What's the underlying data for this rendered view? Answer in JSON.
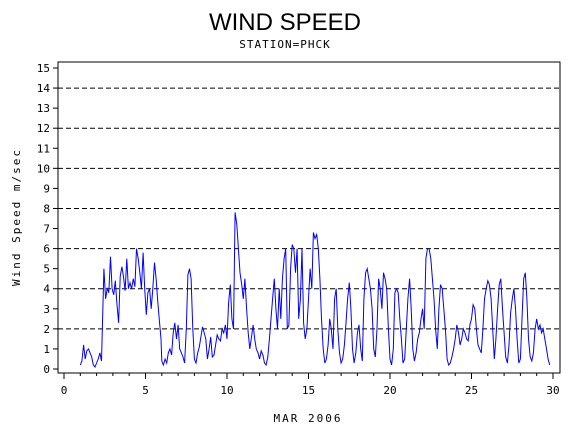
{
  "chart_data": {
    "type": "line",
    "title": "WIND SPEED",
    "subtitle": "STATION=PHCK",
    "xlabel": "MAR 2006",
    "ylabel": "Wind Speed m/sec",
    "xlim": [
      0,
      30.3
    ],
    "ylim": [
      0,
      15.5
    ],
    "x_ticks": [
      0,
      5,
      10,
      15,
      20,
      25,
      30
    ],
    "y_ticks": [
      0,
      1,
      2,
      3,
      4,
      5,
      6,
      7,
      8,
      9,
      10,
      11,
      12,
      13,
      14,
      15
    ],
    "dashed_gridlines_y": [
      2,
      4,
      6,
      8,
      10,
      12,
      14
    ],
    "line_color": "#0000ff",
    "series": [
      {
        "points": [
          [
            1.0,
            0.2
          ],
          [
            1.1,
            0.4
          ],
          [
            1.2,
            1.2
          ],
          [
            1.3,
            0.5
          ],
          [
            1.4,
            0.9
          ],
          [
            1.5,
            1.0
          ],
          [
            1.6,
            0.8
          ],
          [
            1.7,
            0.6
          ],
          [
            1.8,
            0.2
          ],
          [
            1.9,
            0.1
          ],
          [
            2.0,
            0.3
          ],
          [
            2.1,
            0.5
          ],
          [
            2.2,
            0.8
          ],
          [
            2.3,
            0.4
          ],
          [
            2.45,
            5.0
          ],
          [
            2.55,
            3.5
          ],
          [
            2.65,
            4.0
          ],
          [
            2.75,
            3.8
          ],
          [
            2.85,
            5.6
          ],
          [
            2.95,
            4.0
          ],
          [
            3.05,
            3.7
          ],
          [
            3.15,
            4.4
          ],
          [
            3.25,
            3.2
          ],
          [
            3.35,
            2.3
          ],
          [
            3.45,
            4.6
          ],
          [
            3.55,
            5.1
          ],
          [
            3.65,
            4.6
          ],
          [
            3.75,
            3.9
          ],
          [
            3.85,
            5.5
          ],
          [
            3.95,
            4.0
          ],
          [
            4.05,
            4.3
          ],
          [
            4.15,
            4.0
          ],
          [
            4.25,
            4.5
          ],
          [
            4.35,
            4.1
          ],
          [
            4.45,
            6.0
          ],
          [
            4.55,
            5.5
          ],
          [
            4.65,
            4.8
          ],
          [
            4.75,
            4.0
          ],
          [
            4.85,
            5.8
          ],
          [
            4.95,
            4.0
          ],
          [
            5.05,
            2.7
          ],
          [
            5.15,
            3.8
          ],
          [
            5.25,
            4.0
          ],
          [
            5.35,
            3.0
          ],
          [
            5.45,
            4.0
          ],
          [
            5.55,
            5.3
          ],
          [
            5.65,
            4.5
          ],
          [
            5.75,
            3.4
          ],
          [
            5.85,
            2.4
          ],
          [
            5.95,
            1.5
          ],
          [
            6.0,
            0.4
          ],
          [
            6.1,
            0.2
          ],
          [
            6.2,
            0.5
          ],
          [
            6.3,
            0.3
          ],
          [
            6.4,
            0.8
          ],
          [
            6.5,
            1.0
          ],
          [
            6.6,
            0.7
          ],
          [
            6.7,
            1.8
          ],
          [
            6.8,
            2.3
          ],
          [
            6.9,
            1.5
          ],
          [
            7.0,
            2.2
          ],
          [
            7.1,
            1.0
          ],
          [
            7.2,
            0.8
          ],
          [
            7.3,
            0.6
          ],
          [
            7.4,
            0.3
          ],
          [
            7.5,
            2.0
          ],
          [
            7.6,
            4.7
          ],
          [
            7.7,
            5.0
          ],
          [
            7.8,
            4.5
          ],
          [
            7.9,
            2.0
          ],
          [
            8.0,
            0.5
          ],
          [
            8.1,
            0.3
          ],
          [
            8.2,
            0.8
          ],
          [
            8.3,
            1.1
          ],
          [
            8.4,
            1.6
          ],
          [
            8.5,
            2.1
          ],
          [
            8.6,
            1.8
          ],
          [
            8.7,
            1.5
          ],
          [
            8.8,
            0.5
          ],
          [
            8.9,
            1.0
          ],
          [
            9.0,
            1.6
          ],
          [
            9.1,
            0.6
          ],
          [
            9.2,
            0.7
          ],
          [
            9.3,
            1.2
          ],
          [
            9.4,
            1.7
          ],
          [
            9.5,
            1.5
          ],
          [
            9.6,
            1.4
          ],
          [
            9.7,
            2.0
          ],
          [
            9.8,
            1.8
          ],
          [
            9.9,
            2.2
          ],
          [
            10.0,
            1.5
          ],
          [
            10.1,
            3.3
          ],
          [
            10.2,
            4.2
          ],
          [
            10.3,
            2.5
          ],
          [
            10.4,
            2.0
          ],
          [
            10.5,
            7.8
          ],
          [
            10.6,
            7.2
          ],
          [
            10.7,
            6.0
          ],
          [
            10.8,
            4.8
          ],
          [
            10.9,
            4.2
          ],
          [
            11.0,
            3.5
          ],
          [
            11.1,
            4.5
          ],
          [
            11.2,
            3.0
          ],
          [
            11.3,
            1.8
          ],
          [
            11.4,
            1.0
          ],
          [
            11.5,
            1.6
          ],
          [
            11.6,
            2.2
          ],
          [
            11.7,
            1.5
          ],
          [
            11.8,
            1.0
          ],
          [
            11.9,
            0.8
          ],
          [
            12.0,
            0.5
          ],
          [
            12.1,
            0.9
          ],
          [
            12.2,
            0.7
          ],
          [
            12.3,
            0.3
          ],
          [
            12.4,
            0.2
          ],
          [
            12.5,
            0.6
          ],
          [
            12.6,
            1.5
          ],
          [
            12.7,
            2.5
          ],
          [
            12.8,
            3.5
          ],
          [
            12.9,
            4.5
          ],
          [
            13.0,
            3.0
          ],
          [
            13.1,
            2.0
          ],
          [
            13.2,
            4.0
          ],
          [
            13.3,
            2.5
          ],
          [
            13.4,
            4.5
          ],
          [
            13.5,
            5.5
          ],
          [
            13.6,
            6.0
          ],
          [
            13.7,
            2.0
          ],
          [
            13.8,
            2.2
          ],
          [
            13.9,
            5.0
          ],
          [
            14.0,
            6.2
          ],
          [
            14.1,
            6.0
          ],
          [
            14.2,
            4.8
          ],
          [
            14.3,
            6.0
          ],
          [
            14.4,
            2.5
          ],
          [
            14.5,
            3.5
          ],
          [
            14.6,
            6.0
          ],
          [
            14.7,
            2.3
          ],
          [
            14.8,
            1.5
          ],
          [
            14.9,
            2.0
          ],
          [
            15.0,
            3.5
          ],
          [
            15.1,
            5.0
          ],
          [
            15.2,
            4.0
          ],
          [
            15.3,
            6.8
          ],
          [
            15.4,
            6.5
          ],
          [
            15.5,
            6.7
          ],
          [
            15.6,
            6.0
          ],
          [
            15.7,
            4.5
          ],
          [
            15.8,
            2.5
          ],
          [
            15.9,
            1.0
          ],
          [
            16.0,
            0.3
          ],
          [
            16.1,
            0.5
          ],
          [
            16.2,
            1.2
          ],
          [
            16.3,
            2.5
          ],
          [
            16.4,
            2.0
          ],
          [
            16.5,
            1.0
          ],
          [
            16.6,
            3.5
          ],
          [
            16.7,
            4.0
          ],
          [
            16.8,
            2.0
          ],
          [
            16.9,
            0.8
          ],
          [
            17.0,
            0.3
          ],
          [
            17.1,
            0.5
          ],
          [
            17.2,
            1.2
          ],
          [
            17.3,
            2.3
          ],
          [
            17.4,
            3.5
          ],
          [
            17.5,
            4.3
          ],
          [
            17.6,
            3.0
          ],
          [
            17.7,
            1.0
          ],
          [
            17.8,
            0.3
          ],
          [
            17.9,
            0.8
          ],
          [
            18.0,
            1.8
          ],
          [
            18.1,
            2.2
          ],
          [
            18.2,
            1.0
          ],
          [
            18.3,
            0.4
          ],
          [
            18.4,
            3.5
          ],
          [
            18.5,
            4.8
          ],
          [
            18.6,
            5.0
          ],
          [
            18.7,
            4.5
          ],
          [
            18.8,
            4.0
          ],
          [
            18.9,
            3.0
          ],
          [
            19.0,
            1.0
          ],
          [
            19.1,
            0.6
          ],
          [
            19.2,
            2.0
          ],
          [
            19.3,
            4.5
          ],
          [
            19.4,
            4.0
          ],
          [
            19.5,
            3.0
          ],
          [
            19.6,
            4.8
          ],
          [
            19.7,
            4.5
          ],
          [
            19.8,
            4.0
          ],
          [
            19.9,
            2.0
          ],
          [
            20.0,
            0.5
          ],
          [
            20.1,
            0.2
          ],
          [
            20.2,
            1.0
          ],
          [
            20.3,
            3.8
          ],
          [
            20.4,
            4.0
          ],
          [
            20.5,
            3.8
          ],
          [
            20.6,
            2.5
          ],
          [
            20.7,
            1.5
          ],
          [
            20.8,
            0.3
          ],
          [
            20.9,
            0.5
          ],
          [
            21.0,
            2.0
          ],
          [
            21.1,
            3.5
          ],
          [
            21.2,
            4.5
          ],
          [
            21.3,
            3.0
          ],
          [
            21.4,
            1.0
          ],
          [
            21.5,
            0.4
          ],
          [
            21.6,
            0.8
          ],
          [
            21.7,
            1.5
          ],
          [
            21.8,
            1.8
          ],
          [
            21.9,
            2.5
          ],
          [
            22.0,
            3.0
          ],
          [
            22.1,
            2.0
          ],
          [
            22.2,
            5.5
          ],
          [
            22.3,
            6.0
          ],
          [
            22.4,
            6.0
          ],
          [
            22.5,
            5.5
          ],
          [
            22.6,
            4.5
          ],
          [
            22.7,
            3.5
          ],
          [
            22.8,
            2.0
          ],
          [
            22.9,
            1.0
          ],
          [
            23.0,
            3.0
          ],
          [
            23.1,
            4.2
          ],
          [
            23.2,
            4.0
          ],
          [
            23.3,
            3.0
          ],
          [
            23.4,
            2.0
          ],
          [
            23.5,
            0.5
          ],
          [
            23.6,
            0.2
          ],
          [
            23.7,
            0.3
          ],
          [
            23.8,
            0.6
          ],
          [
            23.9,
            1.0
          ],
          [
            24.0,
            1.5
          ],
          [
            24.1,
            2.2
          ],
          [
            24.2,
            1.8
          ],
          [
            24.3,
            1.2
          ],
          [
            24.4,
            1.5
          ],
          [
            24.5,
            2.0
          ],
          [
            24.6,
            1.8
          ],
          [
            24.7,
            1.5
          ],
          [
            24.8,
            1.4
          ],
          [
            24.9,
            2.2
          ],
          [
            25.0,
            2.5
          ],
          [
            25.1,
            3.2
          ],
          [
            25.2,
            3.0
          ],
          [
            25.3,
            2.0
          ],
          [
            25.4,
            1.2
          ],
          [
            25.5,
            1.0
          ],
          [
            25.6,
            0.8
          ],
          [
            25.7,
            2.0
          ],
          [
            25.8,
            3.5
          ],
          [
            25.9,
            4.0
          ],
          [
            26.0,
            4.4
          ],
          [
            26.1,
            4.2
          ],
          [
            26.2,
            3.5
          ],
          [
            26.3,
            2.0
          ],
          [
            26.4,
            0.5
          ],
          [
            26.5,
            1.5
          ],
          [
            26.6,
            3.0
          ],
          [
            26.7,
            4.2
          ],
          [
            26.8,
            4.5
          ],
          [
            26.9,
            3.0
          ],
          [
            27.0,
            1.8
          ],
          [
            27.1,
            0.6
          ],
          [
            27.2,
            0.3
          ],
          [
            27.3,
            1.2
          ],
          [
            27.4,
            2.8
          ],
          [
            27.5,
            3.5
          ],
          [
            27.6,
            4.0
          ],
          [
            27.7,
            3.0
          ],
          [
            27.8,
            1.5
          ],
          [
            27.9,
            0.3
          ],
          [
            28.0,
            0.5
          ],
          [
            28.1,
            2.5
          ],
          [
            28.2,
            4.5
          ],
          [
            28.3,
            4.8
          ],
          [
            28.4,
            3.5
          ],
          [
            28.5,
            1.5
          ],
          [
            28.6,
            0.6
          ],
          [
            28.7,
            0.4
          ],
          [
            28.8,
            0.8
          ],
          [
            28.9,
            2.0
          ],
          [
            29.0,
            2.5
          ],
          [
            29.1,
            2.0
          ],
          [
            29.2,
            2.2
          ],
          [
            29.3,
            1.8
          ],
          [
            29.4,
            2.0
          ],
          [
            29.5,
            1.5
          ],
          [
            29.6,
            1.0
          ],
          [
            29.7,
            0.5
          ],
          [
            29.8,
            0.2
          ]
        ]
      }
    ]
  }
}
